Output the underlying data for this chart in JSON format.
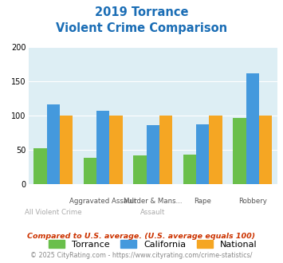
{
  "title_line1": "2019 Torrance",
  "title_line2": "Violent Crime Comparison",
  "categories": [
    "All Violent Crime",
    "Aggravated Assault",
    "Murder & Mans...",
    "Rape",
    "Robbery"
  ],
  "top_labels": [
    "",
    "Aggravated Assault",
    "Murder & Mans...",
    "Rape",
    "Robbery"
  ],
  "bottom_labels": [
    "All Violent Crime",
    "",
    "Assault",
    "",
    ""
  ],
  "torrance": [
    52,
    38,
    42,
    43,
    97
  ],
  "california": [
    117,
    107,
    86,
    87,
    162
  ],
  "national": [
    100,
    100,
    100,
    100,
    100
  ],
  "colors": {
    "torrance": "#6abf4b",
    "california": "#4499dd",
    "national": "#f5a623"
  },
  "ylim": [
    0,
    200
  ],
  "yticks": [
    0,
    50,
    100,
    150,
    200
  ],
  "title_color": "#1a6db5",
  "fig_bg": "#ffffff",
  "plot_bg": "#ddeef4",
  "footnote1": "Compared to U.S. average. (U.S. average equals 100)",
  "footnote2": "© 2025 CityRating.com - https://www.cityrating.com/crime-statistics/",
  "footnote1_color": "#cc3300",
  "footnote2_color": "#888888"
}
